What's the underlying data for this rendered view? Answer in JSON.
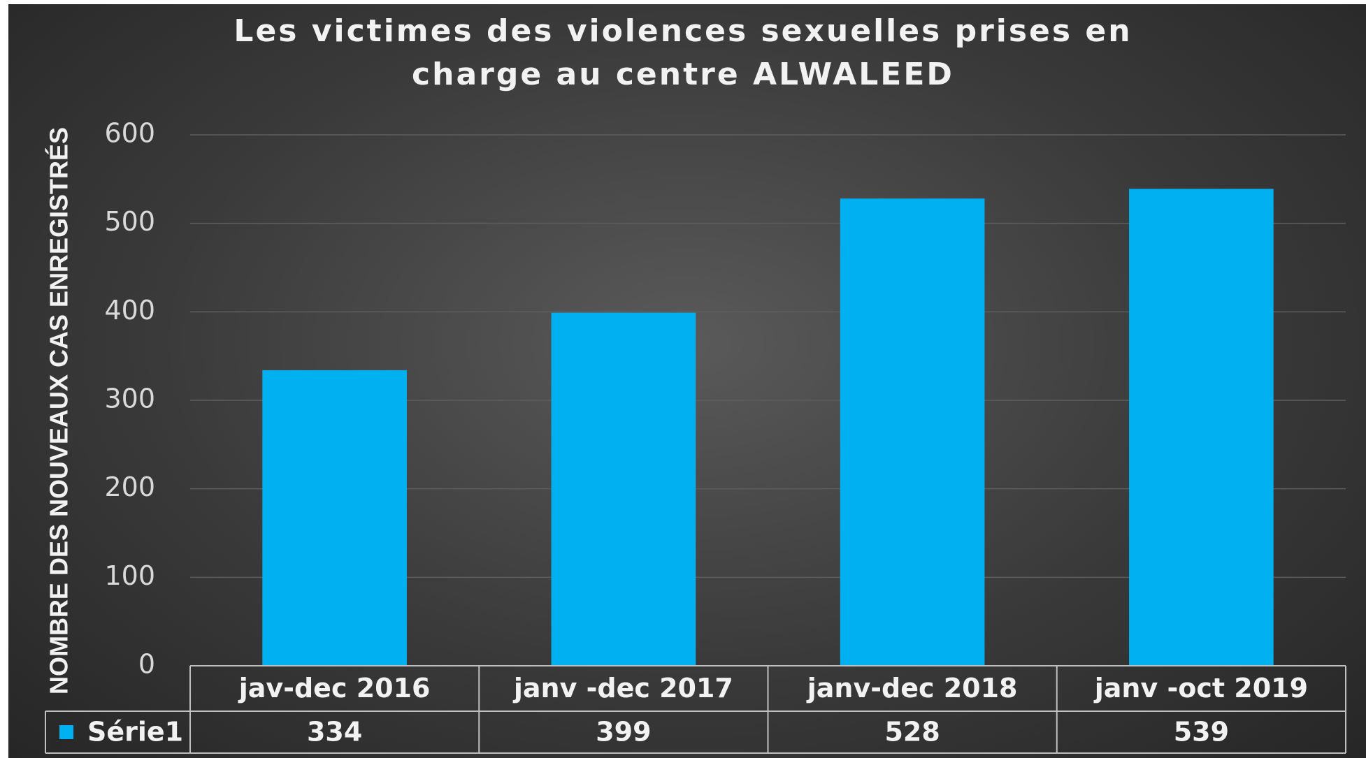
{
  "chart_data": {
    "type": "bar",
    "title": "Les victimes des violences sexuelles prises en charge au centre ALWALEED",
    "y_label": "NOMBRE DES NOUVEAUX CAS ENREGISTRÉS",
    "categories": [
      "jav-dec 2016",
      "janv -dec 2017",
      "janv-dec 2018",
      "janv -oct  2019"
    ],
    "series": [
      {
        "name": "Série1",
        "color": "#00b0f0",
        "values": [
          334,
          399,
          528,
          539
        ]
      }
    ],
    "ylim": [
      0,
      600
    ],
    "yticks": [
      0,
      100,
      200,
      300,
      400,
      500,
      600
    ],
    "grid": true,
    "data_table": true
  }
}
